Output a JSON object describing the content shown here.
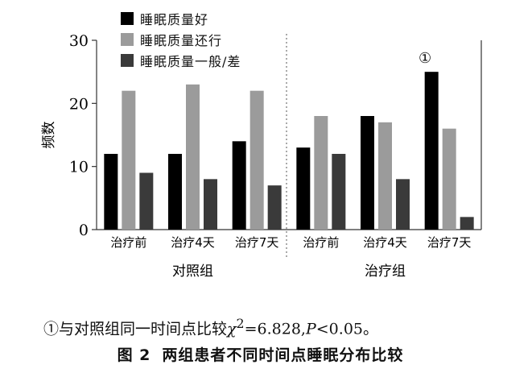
{
  "chart_data": {
    "type": "bar",
    "ylabel": "频数",
    "ylim": [
      0,
      30
    ],
    "yticks": [
      0,
      10,
      20,
      30
    ],
    "colors": [
      "#000000",
      "#9b9b9b",
      "#3a3a3a"
    ],
    "groups": [
      {
        "name": "对照组",
        "categories": [
          "治疗前",
          "治疗4天",
          "治疗7天"
        ]
      },
      {
        "name": "治疗组",
        "categories": [
          "治疗前",
          "治疗4天",
          "治疗7天"
        ]
      }
    ],
    "series": [
      {
        "name": "睡眠质量好",
        "values": [
          12,
          12,
          14,
          13,
          18,
          25
        ]
      },
      {
        "name": "睡眠质量还行",
        "values": [
          22,
          23,
          22,
          18,
          17,
          16
        ]
      },
      {
        "name": "睡眠质量一般/差",
        "values": [
          9,
          8,
          7,
          12,
          8,
          2
        ]
      }
    ],
    "annotation": {
      "text": "①",
      "group_index": 1,
      "category_index": 2
    }
  },
  "note": {
    "prefix": "①与对照组同一时间点比较",
    "chi": "χ",
    "sup": "2",
    "stat": "=6.828,",
    "p": "P",
    "rest": "<0.05。"
  },
  "caption": {
    "number": "图 2",
    "title": "两组患者不同时间点睡眠分布比较"
  }
}
